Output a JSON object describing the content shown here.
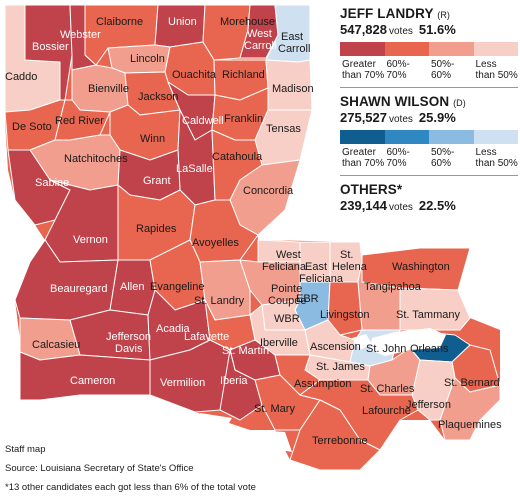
{
  "legend": {
    "candidates": [
      {
        "name": "JEFF LANDRY",
        "party": "(R)",
        "votes": "547,828",
        "votes_label": "votes",
        "percent": "51.6%",
        "scale": [
          {
            "label": "Greater than 70%",
            "color": "#c0424a"
          },
          {
            "label": "60%- 70%",
            "color": "#e8664f"
          },
          {
            "label": "50%- 60%",
            "color": "#f29e8e"
          },
          {
            "label": "Less than 50%",
            "color": "#f8cfc6"
          }
        ]
      },
      {
        "name": "SHAWN WILSON",
        "party": "(D)",
        "votes": "275,527",
        "votes_label": "votes",
        "percent": "25.9%",
        "scale": [
          {
            "label": "Greater than 70%",
            "color": "#0f5e8f"
          },
          {
            "label": "60%- 70%",
            "color": "#2f88c2"
          },
          {
            "label": "50%- 60%",
            "color": "#8bbbe0"
          },
          {
            "label": "Less than 50%",
            "color": "#cfe0f1"
          }
        ]
      },
      {
        "name": "OTHERS*",
        "party": "",
        "votes": "239,144",
        "votes_label": "votes",
        "percent": "22.5%",
        "scale": []
      }
    ]
  },
  "colors": {
    "r70": "#c0424a",
    "r60": "#e8664f",
    "r50": "#f29e8e",
    "rlt": "#f8cfc6",
    "d70": "#0f5e8f",
    "d50": "#8bbbe0",
    "dlt": "#cfe0f1",
    "water": "#ffffff",
    "border": "#ffffff"
  },
  "parishes": [
    {
      "name": "Caddo",
      "level": "rlt"
    },
    {
      "name": "Bossier",
      "level": "r70"
    },
    {
      "name": "Webster",
      "level": "r70"
    },
    {
      "name": "Claiborne",
      "level": "r60"
    },
    {
      "name": "Union",
      "level": "r70"
    },
    {
      "name": "Morehouse",
      "level": "r60"
    },
    {
      "name": "West Carroll",
      "level": "r70"
    },
    {
      "name": "East Carroll",
      "level": "dlt"
    },
    {
      "name": "Lincoln",
      "level": "r50"
    },
    {
      "name": "Ouachita",
      "level": "r60"
    },
    {
      "name": "Richland",
      "level": "r60"
    },
    {
      "name": "Madison",
      "level": "rlt"
    },
    {
      "name": "Bienville",
      "level": "r50"
    },
    {
      "name": "Jackson",
      "level": "r60"
    },
    {
      "name": "De Soto",
      "level": "r60"
    },
    {
      "name": "Red River",
      "level": "r60"
    },
    {
      "name": "Caldwell",
      "level": "r70"
    },
    {
      "name": "Franklin",
      "level": "r60"
    },
    {
      "name": "Tensas",
      "level": "rlt"
    },
    {
      "name": "Winn",
      "level": "r60"
    },
    {
      "name": "Natchitoches",
      "level": "r50"
    },
    {
      "name": "LaSalle",
      "level": "r70"
    },
    {
      "name": "Catahoula",
      "level": "r60"
    },
    {
      "name": "Sabine",
      "level": "r70"
    },
    {
      "name": "Grant",
      "level": "r70"
    },
    {
      "name": "Concordia",
      "level": "r50"
    },
    {
      "name": "Vernon",
      "level": "r70"
    },
    {
      "name": "Rapides",
      "level": "r60"
    },
    {
      "name": "Avoyelles",
      "level": "r60"
    },
    {
      "name": "West Feliciana",
      "level": "rlt"
    },
    {
      "name": "East Feliciana",
      "level": "rlt"
    },
    {
      "name": "St. Helena",
      "level": "rlt"
    },
    {
      "name": "Washington",
      "level": "r60"
    },
    {
      "name": "Beauregard",
      "level": "r70"
    },
    {
      "name": "Allen",
      "level": "r70"
    },
    {
      "name": "Evangeline",
      "level": "r60"
    },
    {
      "name": "St. Landry",
      "level": "r50"
    },
    {
      "name": "Pointe Coupee",
      "level": "r50"
    },
    {
      "name": "EBR",
      "level": "d50"
    },
    {
      "name": "Tangipahoa",
      "level": "r50"
    },
    {
      "name": "St. Tammany",
      "level": "rlt"
    },
    {
      "name": "Livingston",
      "level": "r60"
    },
    {
      "name": "WBR",
      "level": "rlt"
    },
    {
      "name": "Iberville",
      "level": "rlt"
    },
    {
      "name": "Ascension",
      "level": "rlt"
    },
    {
      "name": "St. John",
      "level": "dlt"
    },
    {
      "name": "Orleans",
      "level": "d70"
    },
    {
      "name": "Calcasieu",
      "level": "r50"
    },
    {
      "name": "Jefferson Davis",
      "level": "r70"
    },
    {
      "name": "Acadia",
      "level": "r70"
    },
    {
      "name": "Lafayette",
      "level": "r60"
    },
    {
      "name": "St. Martin",
      "level": "r70"
    },
    {
      "name": "St. James",
      "level": "rlt"
    },
    {
      "name": "Assumption",
      "level": "r60"
    },
    {
      "name": "St. Charles",
      "level": "r50"
    },
    {
      "name": "St. Bernard",
      "level": "r60"
    },
    {
      "name": "Cameron",
      "level": "r70"
    },
    {
      "name": "Vermilion",
      "level": "r70"
    },
    {
      "name": "Iberia",
      "level": "r70"
    },
    {
      "name": "St. Mary",
      "level": "r60"
    },
    {
      "name": "Jefferson",
      "level": "rlt"
    },
    {
      "name": "Lafourche",
      "level": "r60"
    },
    {
      "name": "Plaquemines",
      "level": "r50"
    },
    {
      "name": "Terrebonne",
      "level": "r60"
    }
  ],
  "notes": {
    "credit": "Staff map",
    "source": "Source: Louisiana Secretary of State's Office",
    "footnote": "*13 other candidates each got less than 6% of the total vote"
  }
}
